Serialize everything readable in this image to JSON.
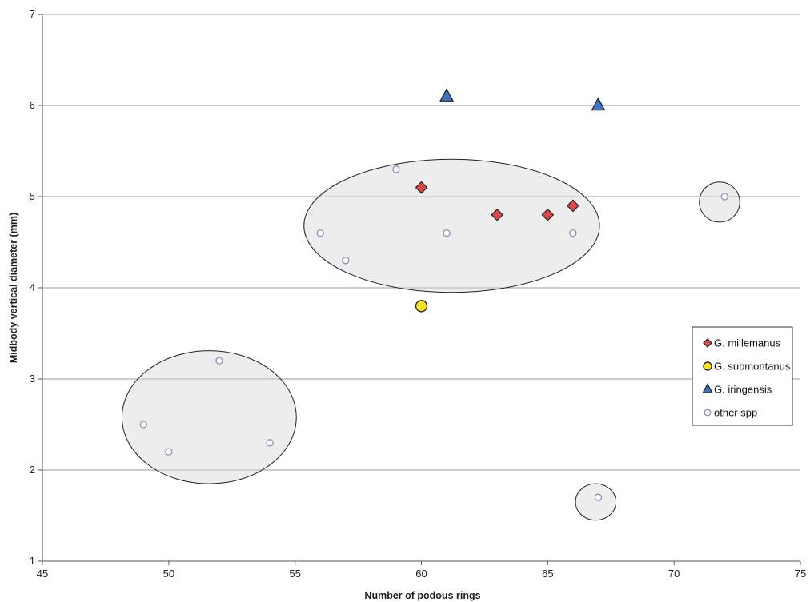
{
  "chart_data": {
    "type": "scatter",
    "xlabel": "Number of podous rings",
    "ylabel": "Midbody vertical diameter (mm)",
    "xlim": [
      45,
      75
    ],
    "ylim": [
      1,
      7
    ],
    "xticks": [
      "45",
      "50",
      "55",
      "60",
      "65",
      "70",
      "75"
    ],
    "yticks": [
      "1",
      "2",
      "3",
      "4",
      "5",
      "6",
      "7"
    ],
    "grid": "horizontal",
    "legend_position": "right",
    "series": [
      {
        "name": "G. millemanus",
        "marker": "diamond",
        "color": "#e04848",
        "points": [
          [
            60,
            5.1
          ],
          [
            63,
            4.8
          ],
          [
            65,
            4.8
          ],
          [
            66,
            4.9
          ]
        ]
      },
      {
        "name": "G. submontanus",
        "marker": "circle",
        "color": "#f5e11e",
        "points": [
          [
            60,
            3.8
          ]
        ]
      },
      {
        "name": "G. iringensis",
        "marker": "triangle",
        "color": "#3f74c0",
        "points": [
          [
            61,
            6.1
          ],
          [
            67,
            6.0
          ]
        ]
      },
      {
        "name": "other spp",
        "marker": "open-circle",
        "color": "#8e8eb8",
        "points": [
          [
            49,
            2.5
          ],
          [
            50,
            2.2
          ],
          [
            52,
            3.2
          ],
          [
            54,
            2.3
          ],
          [
            56,
            4.6
          ],
          [
            57,
            4.3
          ],
          [
            59,
            5.3
          ],
          [
            61,
            4.6
          ],
          [
            66,
            4.6
          ],
          [
            67,
            1.7
          ],
          [
            72,
            5.0
          ]
        ]
      }
    ],
    "ellipses": [
      {
        "cx": 61.2,
        "cy": 4.68,
        "rx": 5.85,
        "ry": 0.73
      },
      {
        "cx": 51.6,
        "cy": 2.58,
        "rx": 3.45,
        "ry": 0.73
      },
      {
        "cx": 71.8,
        "cy": 4.94,
        "rx": 0.8,
        "ry": 0.22
      },
      {
        "cx": 66.9,
        "cy": 1.65,
        "rx": 0.8,
        "ry": 0.2
      }
    ]
  }
}
